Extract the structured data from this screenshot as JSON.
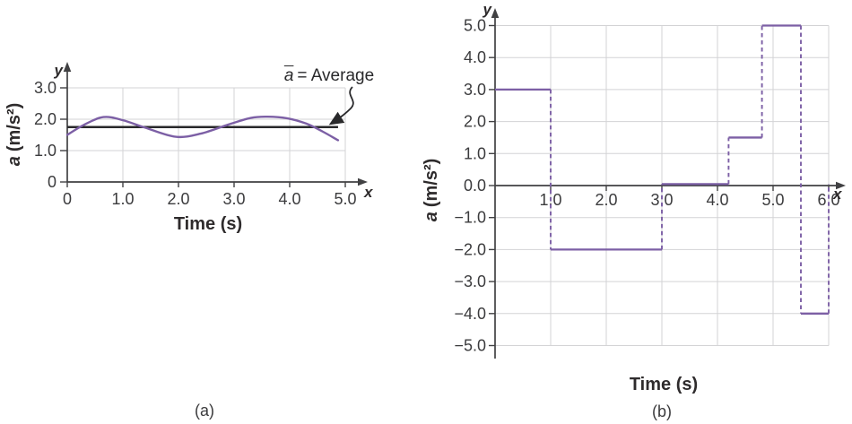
{
  "figure": {
    "background": "#ffffff"
  },
  "colors": {
    "series_purple": "#7c5fa5",
    "average_black": "#29292b",
    "grid": "#d3d3d5",
    "axis": "#414143",
    "text": "#3b3b3d"
  },
  "chart_data": [
    {
      "id": "a",
      "type": "line",
      "caption": "(a)",
      "xlabel": "Time (s)",
      "ylabel_symbol": "a",
      "ylabel_units": "(m/s²)",
      "axis_letter_x": "x",
      "axis_letter_y": "y",
      "xlim": [
        0,
        5.0
      ],
      "ylim": [
        0,
        3.0
      ],
      "grid": true,
      "xticks": {
        "values": [
          0,
          1,
          2,
          3,
          4,
          5
        ],
        "labels": [
          "0",
          "1.0",
          "2.0",
          "3.0",
          "4.0",
          "5.0"
        ]
      },
      "yticks": {
        "values": [
          0,
          1,
          2,
          3
        ],
        "labels": [
          "0",
          "1.0",
          "2.0",
          "3.0"
        ]
      },
      "series": [
        {
          "name": "instantaneous acceleration",
          "style": "smooth-curve",
          "points": [
            [
              0,
              1.5
            ],
            [
              0.3,
              1.82
            ],
            [
              0.65,
              2.07
            ],
            [
              1.0,
              1.97
            ],
            [
              1.4,
              1.73
            ],
            [
              1.95,
              1.44
            ],
            [
              2.4,
              1.54
            ],
            [
              2.9,
              1.83
            ],
            [
              3.3,
              2.04
            ],
            [
              3.6,
              2.08
            ],
            [
              3.95,
              2.03
            ],
            [
              4.3,
              1.86
            ],
            [
              4.6,
              1.6
            ],
            [
              4.87,
              1.33
            ]
          ]
        },
        {
          "name": "average acceleration",
          "style": "hline",
          "value": 1.75,
          "x_start": 0,
          "x_end": 4.87
        }
      ],
      "annotation": {
        "variable": "a",
        "text": "= Average"
      }
    },
    {
      "id": "b",
      "type": "step",
      "caption": "(b)",
      "xlabel": "Time (s)",
      "ylabel_symbol": "a",
      "ylabel_units": "(m/s²)",
      "axis_letter_x": "x",
      "axis_letter_y": "y",
      "xlim": [
        0,
        6.0
      ],
      "ylim": [
        -5.0,
        5.0
      ],
      "grid": true,
      "xticks": {
        "values": [
          1,
          2,
          3,
          4,
          5,
          6
        ],
        "labels": [
          "1.0",
          "2.0",
          "3.0",
          "4.0",
          "5.0",
          "6.0"
        ]
      },
      "yticks": {
        "values": [
          5,
          4,
          3,
          2,
          1,
          0,
          -1,
          -2,
          -3,
          -4,
          -5
        ],
        "labels": [
          "5.0",
          "4.0",
          "3.0",
          "2.0",
          "1.0",
          "0.0",
          "−1.0",
          "−2.0",
          "−3.0",
          "−4.0",
          "−5.0"
        ]
      },
      "segments": [
        {
          "t_start": 0,
          "t_end": 1.0,
          "a": 3.0
        },
        {
          "t_start": 1.0,
          "t_end": 3.0,
          "a": -2.0
        },
        {
          "t_start": 3.0,
          "t_end": 4.2,
          "a": 0.0
        },
        {
          "t_start": 4.2,
          "t_end": 4.8,
          "a": 1.5
        },
        {
          "t_start": 4.8,
          "t_end": 5.5,
          "a": 5.0
        },
        {
          "t_start": 5.5,
          "t_end": 6.0,
          "a": -4.0
        }
      ],
      "transition_style": "dashed",
      "closing_dashed": {
        "t": 6.0,
        "from": -4.0,
        "to": 0.0
      }
    }
  ]
}
